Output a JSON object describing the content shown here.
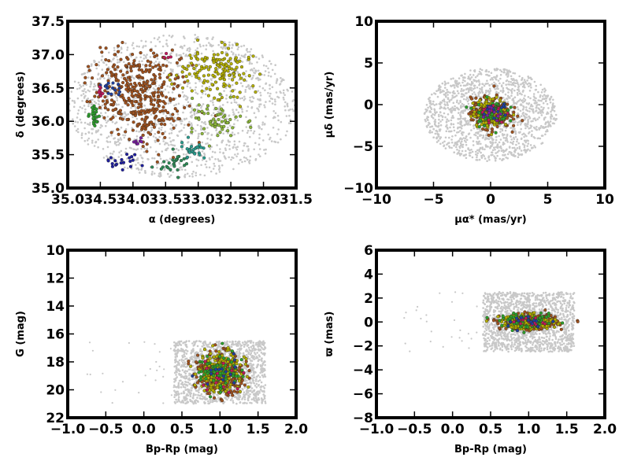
{
  "chart_data": [
    {
      "type": "scatter",
      "xlabel": "α (degrees)",
      "ylabel": "δ (degrees)",
      "xlim": [
        35.0,
        31.5
      ],
      "ylim": [
        35.0,
        37.5
      ],
      "xticks": [
        "35.0",
        "34.5",
        "34.0",
        "33.5",
        "33.0",
        "32.5",
        "32.0",
        "31.5"
      ],
      "yticks": [
        "35.0",
        "35.5",
        "36.0",
        "36.5",
        "37.0",
        "37.5"
      ],
      "background": {
        "color": "#c8c8c8",
        "shape": "ellipse",
        "center": [
          33.25,
          36.23
        ],
        "radius": [
          1.75,
          1.08
        ]
      },
      "groups": [
        {
          "color": "#a0521e",
          "center": [
            33.95,
            36.55
          ],
          "spread": [
            0.55,
            0.45
          ],
          "count": 260
        },
        {
          "color": "#a0521e",
          "center": [
            33.75,
            36.05
          ],
          "spread": [
            0.45,
            0.35
          ],
          "count": 120
        },
        {
          "color": "#b5b000",
          "center": [
            32.7,
            36.75
          ],
          "spread": [
            0.45,
            0.3
          ],
          "count": 150
        },
        {
          "color": "#8db83a",
          "center": [
            32.75,
            36.0
          ],
          "spread": [
            0.35,
            0.25
          ],
          "count": 60
        },
        {
          "color": "#2a9d8f",
          "center": [
            33.05,
            35.55
          ],
          "spread": [
            0.2,
            0.12
          ],
          "count": 25
        },
        {
          "color": "#2e8b57",
          "center": [
            33.35,
            35.35
          ],
          "spread": [
            0.2,
            0.15
          ],
          "count": 25
        },
        {
          "color": "#2ca02c",
          "center": [
            34.6,
            36.1
          ],
          "spread": [
            0.06,
            0.2
          ],
          "count": 25
        },
        {
          "color": "#1f1f9e",
          "center": [
            34.15,
            35.38
          ],
          "spread": [
            0.2,
            0.08
          ],
          "count": 20
        },
        {
          "color": "#1f3f9e",
          "center": [
            34.3,
            36.5
          ],
          "spread": [
            0.15,
            0.08
          ],
          "count": 14
        },
        {
          "color": "#7b1fa2",
          "center": [
            33.95,
            35.7
          ],
          "spread": [
            0.1,
            0.05
          ],
          "count": 8
        },
        {
          "color": "#c2185b",
          "center": [
            34.5,
            36.45
          ],
          "spread": [
            0.05,
            0.08
          ],
          "count": 8
        },
        {
          "color": "#c2185b",
          "center": [
            33.5,
            37.0
          ],
          "spread": [
            0.05,
            0.05
          ],
          "count": 4
        }
      ]
    },
    {
      "type": "scatter",
      "xlabel": "μα* (mas/yr)",
      "ylabel": "μδ (mas/yr)",
      "xlim": [
        -10,
        10
      ],
      "ylim": [
        -10,
        10
      ],
      "xticks": [
        "−10",
        "−5",
        "0",
        "5",
        "10"
      ],
      "yticks": [
        "−10",
        "−5",
        "0",
        "5",
        "10"
      ],
      "background": {
        "color": "#c8c8c8",
        "shape": "ellipse",
        "center": [
          0,
          -1.2
        ],
        "radius": [
          5.8,
          5.6
        ]
      },
      "groups": [
        {
          "color": "#a0521e",
          "center": [
            0,
            -1.0
          ],
          "spread": [
            1.4,
            1.5
          ],
          "count": 260
        },
        {
          "color": "#b5b000",
          "center": [
            0,
            -1.0
          ],
          "spread": [
            1.3,
            1.4
          ],
          "count": 140
        },
        {
          "color": "#2ca02c",
          "center": [
            0,
            -1.0
          ],
          "spread": [
            1.2,
            1.3
          ],
          "count": 60
        },
        {
          "color": "#c2185b",
          "center": [
            0,
            -1.0
          ],
          "spread": [
            1.0,
            1.0
          ],
          "count": 20
        },
        {
          "color": "#1f3f9e",
          "center": [
            0.3,
            -0.5
          ],
          "spread": [
            1.0,
            1.0
          ],
          "count": 15
        },
        {
          "color": "#7b1fa2",
          "center": [
            0,
            -1.0
          ],
          "spread": [
            1.0,
            1.0
          ],
          "count": 10
        }
      ]
    },
    {
      "type": "scatter",
      "xlabel": "Bp-Rp (mag)",
      "ylabel": "G (mag)",
      "xlim": [
        -1.0,
        2.0
      ],
      "ylim": [
        22,
        10
      ],
      "xticks": [
        "−1.0",
        "−0.5",
        "0.0",
        "0.5",
        "1.0",
        "1.5",
        "2.0"
      ],
      "yticks": [
        "22",
        "20",
        "18",
        "16",
        "14",
        "12",
        "10"
      ],
      "background": {
        "color": "#c8c8c8",
        "shape": "box",
        "x": [
          0.4,
          1.6
        ],
        "y": [
          16.5,
          21.0
        ]
      },
      "groups": [
        {
          "color": "#a0521e",
          "center": [
            1.0,
            18.8
          ],
          "spread": [
            0.25,
            1.2
          ],
          "count": 300
        },
        {
          "color": "#b5b000",
          "center": [
            1.0,
            18.8
          ],
          "spread": [
            0.25,
            1.2
          ],
          "count": 200
        },
        {
          "color": "#2ca02c",
          "center": [
            1.0,
            18.8
          ],
          "spread": [
            0.25,
            1.2
          ],
          "count": 70
        },
        {
          "color": "#c2185b",
          "center": [
            1.0,
            18.8
          ],
          "spread": [
            0.25,
            1.2
          ],
          "count": 15
        },
        {
          "color": "#1f3f9e",
          "center": [
            1.0,
            18.8
          ],
          "spread": [
            0.25,
            1.2
          ],
          "count": 15
        }
      ]
    },
    {
      "type": "scatter",
      "xlabel": "Bp-Rp (mag)",
      "ylabel": "ϖ (mas)",
      "xlim": [
        -1.0,
        2.0
      ],
      "ylim": [
        -8,
        6
      ],
      "xticks": [
        "−1.0",
        "−0.5",
        "0.0",
        "0.5",
        "1.0",
        "1.5",
        "2.0"
      ],
      "yticks": [
        "−8",
        "−6",
        "−4",
        "−2",
        "0",
        "2",
        "4",
        "6"
      ],
      "background": {
        "color": "#c8c8c8",
        "shape": "box",
        "x": [
          0.4,
          1.6
        ],
        "y": [
          -2.5,
          2.5
        ]
      },
      "groups": [
        {
          "color": "#a0521e",
          "center": [
            1.0,
            0.0
          ],
          "spread": [
            0.3,
            0.5
          ],
          "count": 300
        },
        {
          "color": "#b5b000",
          "center": [
            1.0,
            0.0
          ],
          "spread": [
            0.3,
            0.5
          ],
          "count": 200
        },
        {
          "color": "#2ca02c",
          "center": [
            1.0,
            0.0
          ],
          "spread": [
            0.3,
            0.5
          ],
          "count": 70
        },
        {
          "color": "#c2185b",
          "center": [
            1.0,
            0.0
          ],
          "spread": [
            0.3,
            0.5
          ],
          "count": 15
        },
        {
          "color": "#1f3f9e",
          "center": [
            1.0,
            0.0
          ],
          "spread": [
            0.3,
            0.5
          ],
          "count": 15
        }
      ]
    }
  ]
}
